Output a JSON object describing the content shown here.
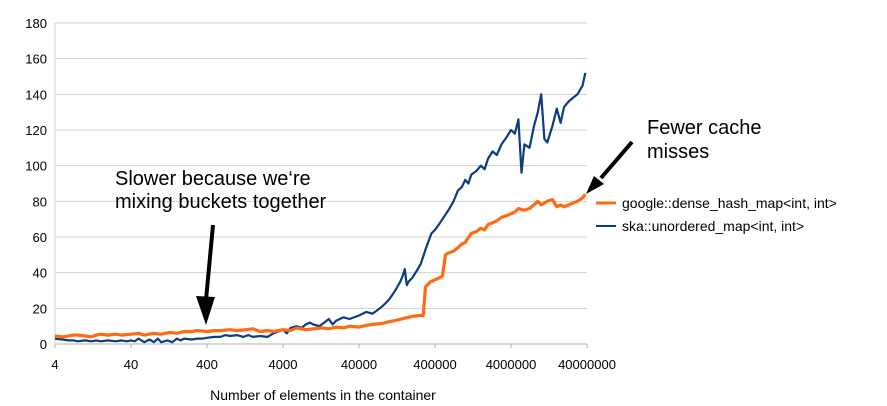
{
  "chart_data": {
    "type": "line",
    "title": "",
    "xlabel": "Number of elements in the container",
    "ylabel": "",
    "x_scale": "log",
    "xlim": [
      4,
      40000000
    ],
    "ylim": [
      0,
      180
    ],
    "y_ticks": [
      0,
      20,
      40,
      60,
      80,
      100,
      120,
      140,
      160,
      180
    ],
    "x_tick_labels": [
      "4",
      "40",
      "400",
      "4000",
      "40000",
      "400000",
      "4000000",
      "40000000"
    ],
    "x_ticks": [
      4,
      40,
      400,
      4000,
      40000,
      400000,
      4000000,
      40000000
    ],
    "grid": "horizontal",
    "legend_position": "right",
    "series": [
      {
        "name": "google::dense_hash_map<int, int>",
        "color": "#ff6a13",
        "points": [
          [
            4,
            4.5
          ],
          [
            5,
            4
          ],
          [
            6,
            4.5
          ],
          [
            7,
            5
          ],
          [
            8,
            5
          ],
          [
            10,
            4.5
          ],
          [
            12,
            4
          ],
          [
            14,
            5
          ],
          [
            16,
            5.5
          ],
          [
            20,
            5
          ],
          [
            25,
            5.5
          ],
          [
            30,
            5
          ],
          [
            40,
            5.5
          ],
          [
            50,
            6
          ],
          [
            60,
            5
          ],
          [
            80,
            6
          ],
          [
            100,
            5.5
          ],
          [
            130,
            6.5
          ],
          [
            160,
            6
          ],
          [
            200,
            7
          ],
          [
            250,
            7
          ],
          [
            300,
            7.5
          ],
          [
            400,
            7
          ],
          [
            500,
            7.5
          ],
          [
            600,
            7.5
          ],
          [
            800,
            8
          ],
          [
            1000,
            7.5
          ],
          [
            1300,
            8
          ],
          [
            1600,
            8.5
          ],
          [
            2000,
            7
          ],
          [
            2500,
            7.5
          ],
          [
            3000,
            7
          ],
          [
            4000,
            8
          ],
          [
            5000,
            7.5
          ],
          [
            6000,
            9
          ],
          [
            8000,
            8
          ],
          [
            10000,
            8.5
          ],
          [
            13000,
            9
          ],
          [
            16000,
            8.5
          ],
          [
            20000,
            9.5
          ],
          [
            25000,
            9
          ],
          [
            30000,
            10
          ],
          [
            40000,
            9.5
          ],
          [
            50000,
            10.5
          ],
          [
            60000,
            11
          ],
          [
            80000,
            11.5
          ],
          [
            100000,
            12.5
          ],
          [
            130000,
            13.5
          ],
          [
            160000,
            14.5
          ],
          [
            200000,
            15.5
          ],
          [
            250000,
            16
          ],
          [
            280000,
            16
          ],
          [
            300000,
            32
          ],
          [
            350000,
            35
          ],
          [
            400000,
            36
          ],
          [
            450000,
            37
          ],
          [
            500000,
            38
          ],
          [
            550000,
            50
          ],
          [
            600000,
            51
          ],
          [
            700000,
            52
          ],
          [
            800000,
            54
          ],
          [
            900000,
            56
          ],
          [
            1000000,
            57
          ],
          [
            1200000,
            62
          ],
          [
            1400000,
            63
          ],
          [
            1600000,
            65
          ],
          [
            1800000,
            64
          ],
          [
            2000000,
            67
          ],
          [
            2300000,
            68
          ],
          [
            2600000,
            69
          ],
          [
            3000000,
            71
          ],
          [
            3500000,
            72
          ],
          [
            4000000,
            73
          ],
          [
            4500000,
            74
          ],
          [
            5000000,
            76
          ],
          [
            6000000,
            75
          ],
          [
            7000000,
            76
          ],
          [
            8000000,
            78
          ],
          [
            9000000,
            80
          ],
          [
            10000000,
            78
          ],
          [
            12000000,
            80
          ],
          [
            14000000,
            81
          ],
          [
            16000000,
            77
          ],
          [
            18000000,
            78
          ],
          [
            20000000,
            77
          ],
          [
            23000000,
            78
          ],
          [
            26000000,
            79
          ],
          [
            30000000,
            80
          ],
          [
            35000000,
            82
          ],
          [
            38000000,
            84
          ]
        ]
      },
      {
        "name": "ska::unordered_map<int, int>",
        "color": "#0a3d84",
        "points": [
          [
            4,
            3
          ],
          [
            5,
            2.5
          ],
          [
            6,
            2
          ],
          [
            7,
            2
          ],
          [
            8,
            1.5
          ],
          [
            10,
            2
          ],
          [
            12,
            1.5
          ],
          [
            14,
            2
          ],
          [
            16,
            1.5
          ],
          [
            20,
            2
          ],
          [
            25,
            1.5
          ],
          [
            30,
            2
          ],
          [
            35,
            1.5
          ],
          [
            40,
            2
          ],
          [
            45,
            1.5
          ],
          [
            50,
            3
          ],
          [
            60,
            1
          ],
          [
            70,
            2.5
          ],
          [
            80,
            1
          ],
          [
            90,
            3
          ],
          [
            100,
            1
          ],
          [
            120,
            2
          ],
          [
            140,
            1
          ],
          [
            160,
            3
          ],
          [
            180,
            2
          ],
          [
            200,
            3
          ],
          [
            250,
            2.5
          ],
          [
            300,
            3
          ],
          [
            350,
            3
          ],
          [
            400,
            3.5
          ],
          [
            500,
            4
          ],
          [
            600,
            4
          ],
          [
            700,
            5
          ],
          [
            800,
            4.5
          ],
          [
            1000,
            5
          ],
          [
            1200,
            4
          ],
          [
            1400,
            5
          ],
          [
            1600,
            4
          ],
          [
            2000,
            4.5
          ],
          [
            2500,
            4
          ],
          [
            3000,
            6
          ],
          [
            3500,
            7
          ],
          [
            4000,
            8
          ],
          [
            4500,
            6
          ],
          [
            5000,
            9
          ],
          [
            6000,
            10
          ],
          [
            7000,
            9
          ],
          [
            8000,
            11
          ],
          [
            9000,
            12
          ],
          [
            10000,
            11
          ],
          [
            12000,
            10
          ],
          [
            14000,
            12
          ],
          [
            16000,
            14
          ],
          [
            18000,
            11
          ],
          [
            20000,
            13
          ],
          [
            25000,
            15
          ],
          [
            30000,
            14
          ],
          [
            40000,
            16
          ],
          [
            50000,
            18
          ],
          [
            60000,
            17
          ],
          [
            70000,
            19
          ],
          [
            80000,
            21
          ],
          [
            90000,
            23
          ],
          [
            100000,
            25
          ],
          [
            120000,
            30
          ],
          [
            140000,
            35
          ],
          [
            150000,
            38
          ],
          [
            160000,
            42
          ],
          [
            170000,
            33
          ],
          [
            180000,
            35
          ],
          [
            200000,
            37
          ],
          [
            230000,
            41
          ],
          [
            260000,
            45
          ],
          [
            300000,
            53
          ],
          [
            330000,
            58
          ],
          [
            360000,
            62
          ],
          [
            400000,
            64
          ],
          [
            450000,
            67
          ],
          [
            500000,
            70
          ],
          [
            600000,
            75
          ],
          [
            700000,
            80
          ],
          [
            800000,
            86
          ],
          [
            900000,
            88
          ],
          [
            1000000,
            92
          ],
          [
            1100000,
            90
          ],
          [
            1200000,
            95
          ],
          [
            1400000,
            97
          ],
          [
            1600000,
            100
          ],
          [
            1800000,
            98
          ],
          [
            2000000,
            104
          ],
          [
            2300000,
            108
          ],
          [
            2600000,
            106
          ],
          [
            3000000,
            112
          ],
          [
            3500000,
            116
          ],
          [
            4000000,
            120
          ],
          [
            4500000,
            118
          ],
          [
            5000000,
            126
          ],
          [
            5500000,
            96
          ],
          [
            6000000,
            112
          ],
          [
            7000000,
            110
          ],
          [
            8000000,
            122
          ],
          [
            9000000,
            130
          ],
          [
            10000000,
            140
          ],
          [
            11000000,
            115
          ],
          [
            12000000,
            113
          ],
          [
            14000000,
            122
          ],
          [
            16000000,
            132
          ],
          [
            18000000,
            124
          ],
          [
            20000000,
            133
          ],
          [
            23000000,
            136
          ],
          [
            26000000,
            138
          ],
          [
            30000000,
            140
          ],
          [
            35000000,
            145
          ],
          [
            38000000,
            152
          ]
        ]
      }
    ],
    "annotations": [
      {
        "lines": [
          "Slower because we‘re",
          "mixing buckets together"
        ]
      },
      {
        "lines": [
          "Fewer cache",
          "misses"
        ]
      }
    ]
  }
}
